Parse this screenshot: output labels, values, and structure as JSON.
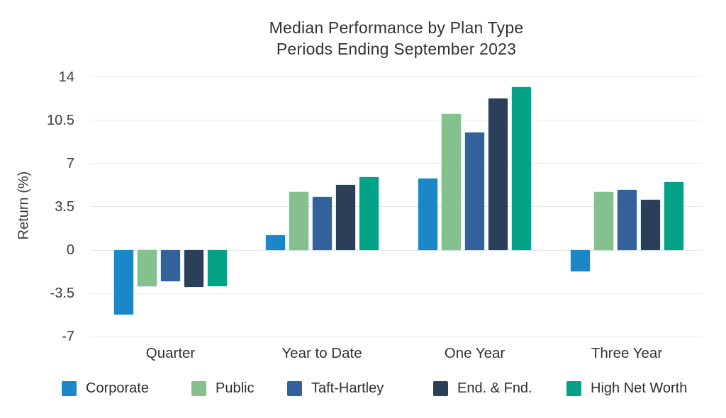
{
  "title": {
    "line1": "Median Performance by Plan Type",
    "line2": "Periods Ending September 2023"
  },
  "chart_data": {
    "type": "bar",
    "title": "Median Performance by Plan Type",
    "subtitle": "Periods Ending September 2023",
    "categories": [
      "Quarter",
      "Year to Date",
      "One Year",
      "Three Year"
    ],
    "series": [
      {
        "name": "Corporate",
        "color": "#1b87c9",
        "values": [
          -5.2,
          1.2,
          5.8,
          -1.7
        ]
      },
      {
        "name": "Public",
        "color": "#85c18d",
        "values": [
          -2.9,
          4.7,
          11.0,
          4.7
        ]
      },
      {
        "name": "Taft-Hartley",
        "color": "#32619b",
        "values": [
          -2.5,
          4.3,
          9.5,
          4.9
        ]
      },
      {
        "name": "End. & Fnd.",
        "color": "#2b4058",
        "values": [
          -3.0,
          5.3,
          12.3,
          4.1
        ]
      },
      {
        "name": "High Net Worth",
        "color": "#03a287",
        "values": [
          -2.9,
          5.9,
          13.2,
          5.5
        ]
      }
    ],
    "xlabel": "",
    "ylabel": "Return (%)",
    "ylim": [
      -7,
      14
    ],
    "yticks": [
      14,
      10.5,
      7,
      3.5,
      0,
      -3.5,
      -7
    ],
    "grid": true,
    "legend_position": "bottom",
    "background": "#ffffff"
  }
}
